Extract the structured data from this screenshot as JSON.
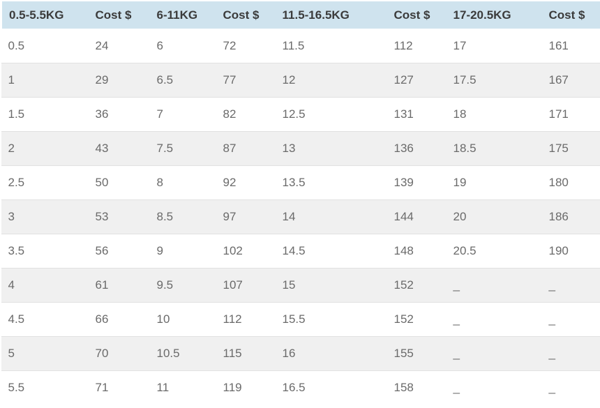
{
  "table": {
    "name": "shipping-cost-table",
    "headers": [
      "0.5-5.5KG",
      "Cost $",
      "6-11KG",
      "Cost $",
      "11.5-16.5KG",
      "Cost $",
      "17-20.5KG",
      "Cost $"
    ],
    "rows": [
      [
        "0.5",
        "24",
        "6",
        "72",
        "11.5",
        "112",
        "17",
        "161"
      ],
      [
        "1",
        "29",
        "6.5",
        "77",
        "12",
        "127",
        "17.5",
        "167"
      ],
      [
        "1.5",
        "36",
        "7",
        "82",
        "12.5",
        "131",
        "18",
        "171"
      ],
      [
        "2",
        "43",
        "7.5",
        "87",
        "13",
        "136",
        "18.5",
        "175"
      ],
      [
        "2.5",
        "50",
        "8",
        "92",
        "13.5",
        "139",
        "19",
        "180"
      ],
      [
        "3",
        "53",
        "8.5",
        "97",
        "14",
        "144",
        "20",
        "186"
      ],
      [
        "3.5",
        "56",
        "9",
        "102",
        "14.5",
        "148",
        "20.5",
        "190"
      ],
      [
        "4",
        "61",
        "9.5",
        "107",
        "15",
        "152",
        "_",
        "_"
      ],
      [
        "4.5",
        "66",
        "10",
        "112",
        "15.5",
        "152",
        "_",
        "_"
      ],
      [
        "5",
        "70",
        "10.5",
        "115",
        "16",
        "155",
        "_",
        "_"
      ],
      [
        "5.5",
        "71",
        "11",
        "119",
        "16.5",
        "158",
        "_",
        "_"
      ]
    ],
    "placeholder_value": "_",
    "colors": {
      "header_bg": "#cfe3ee",
      "header_text": "#3b3b3b",
      "body_text": "#6a6a6a",
      "stripe_bg": "#f0f0f0",
      "row_border": "#e1e1e1",
      "table_outer_border": "#ffffff"
    }
  },
  "chart_data": {
    "type": "table",
    "columns": [
      "0.5-5.5KG",
      "Cost $",
      "6-11KG",
      "Cost $",
      "11.5-16.5KG",
      "Cost $",
      "17-20.5KG",
      "Cost $"
    ],
    "rows": [
      [
        "0.5",
        "24",
        "6",
        "72",
        "11.5",
        "112",
        "17",
        "161"
      ],
      [
        "1",
        "29",
        "6.5",
        "77",
        "12",
        "127",
        "17.5",
        "167"
      ],
      [
        "1.5",
        "36",
        "7",
        "82",
        "12.5",
        "131",
        "18",
        "171"
      ],
      [
        "2",
        "43",
        "7.5",
        "87",
        "13",
        "136",
        "18.5",
        "175"
      ],
      [
        "2.5",
        "50",
        "8",
        "92",
        "13.5",
        "139",
        "19",
        "180"
      ],
      [
        "3",
        "53",
        "8.5",
        "97",
        "14",
        "144",
        "20",
        "186"
      ],
      [
        "3.5",
        "56",
        "9",
        "102",
        "14.5",
        "148",
        "20.5",
        "190"
      ],
      [
        "4",
        "61",
        "9.5",
        "107",
        "15",
        "152",
        "_",
        "_"
      ],
      [
        "4.5",
        "66",
        "10",
        "112",
        "15.5",
        "152",
        "_",
        "_"
      ],
      [
        "5",
        "70",
        "10.5",
        "115",
        "16",
        "155",
        "_",
        "_"
      ],
      [
        "5.5",
        "71",
        "11",
        "119",
        "16.5",
        "158",
        "_",
        "_"
      ]
    ]
  }
}
